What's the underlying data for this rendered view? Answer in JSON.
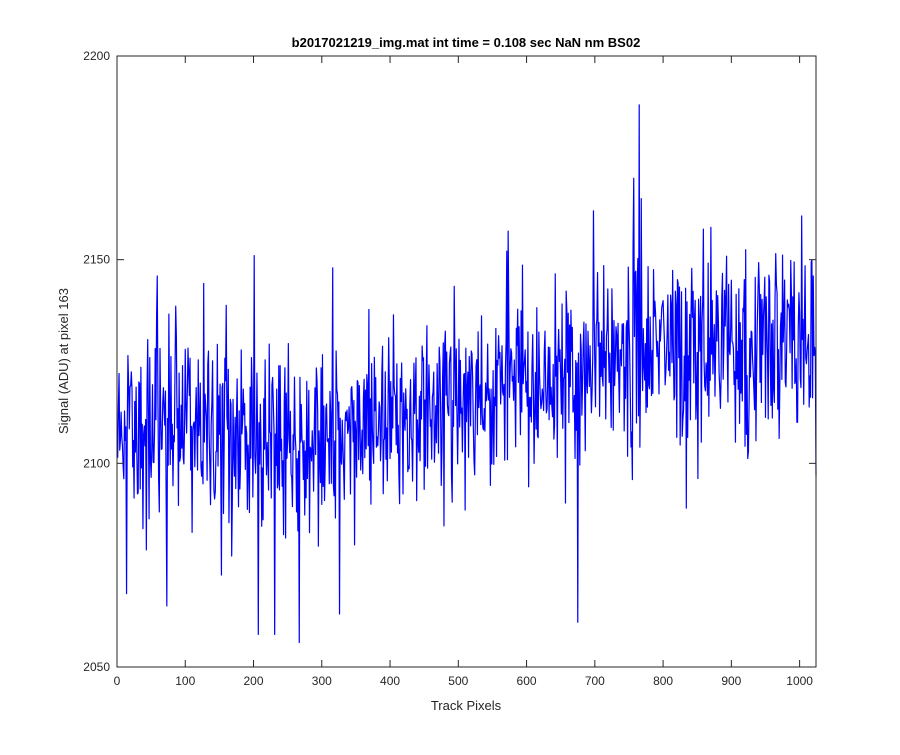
{
  "chart_data": {
    "type": "line",
    "title": "b2017021219_img.mat int time = 0.108 sec  NaN nm BS02",
    "xlabel": "Track Pixels",
    "ylabel": "Signal (ADU) at pixel 163",
    "xlim": [
      0,
      1024
    ],
    "ylim": [
      2050,
      2200
    ],
    "xticks": [
      "0",
      "100",
      "200",
      "300",
      "400",
      "500",
      "600",
      "700",
      "800",
      "900",
      "1000"
    ],
    "yticks": [
      "2050",
      "2100",
      "2150",
      "2200"
    ],
    "grid": false,
    "legend": "none",
    "series_color": "#0000ff",
    "baseline": {
      "description_points": [
        [
          0,
          2112
        ],
        [
          100,
          2108
        ],
        [
          200,
          2104
        ],
        [
          300,
          2106
        ],
        [
          400,
          2110
        ],
        [
          500,
          2114
        ],
        [
          600,
          2120
        ],
        [
          700,
          2124
        ],
        [
          800,
          2127
        ],
        [
          900,
          2128
        ],
        [
          1024,
          2130
        ]
      ],
      "noise_amplitude": 12,
      "seed": 163
    },
    "notable_points": [
      [
        14,
        2068
      ],
      [
        59,
        2146
      ],
      [
        73,
        2065
      ],
      [
        201,
        2151
      ],
      [
        207,
        2058
      ],
      [
        231,
        2058
      ],
      [
        267,
        2056
      ],
      [
        316,
        2148
      ],
      [
        326,
        2063
      ],
      [
        573,
        2157
      ],
      [
        675,
        2061
      ],
      [
        698,
        2162
      ],
      [
        757,
        2170
      ],
      [
        765,
        2188
      ],
      [
        768,
        2165
      ],
      [
        834,
        2089
      ],
      [
        1020,
        2146
      ],
      [
        1024,
        2097
      ]
    ]
  }
}
